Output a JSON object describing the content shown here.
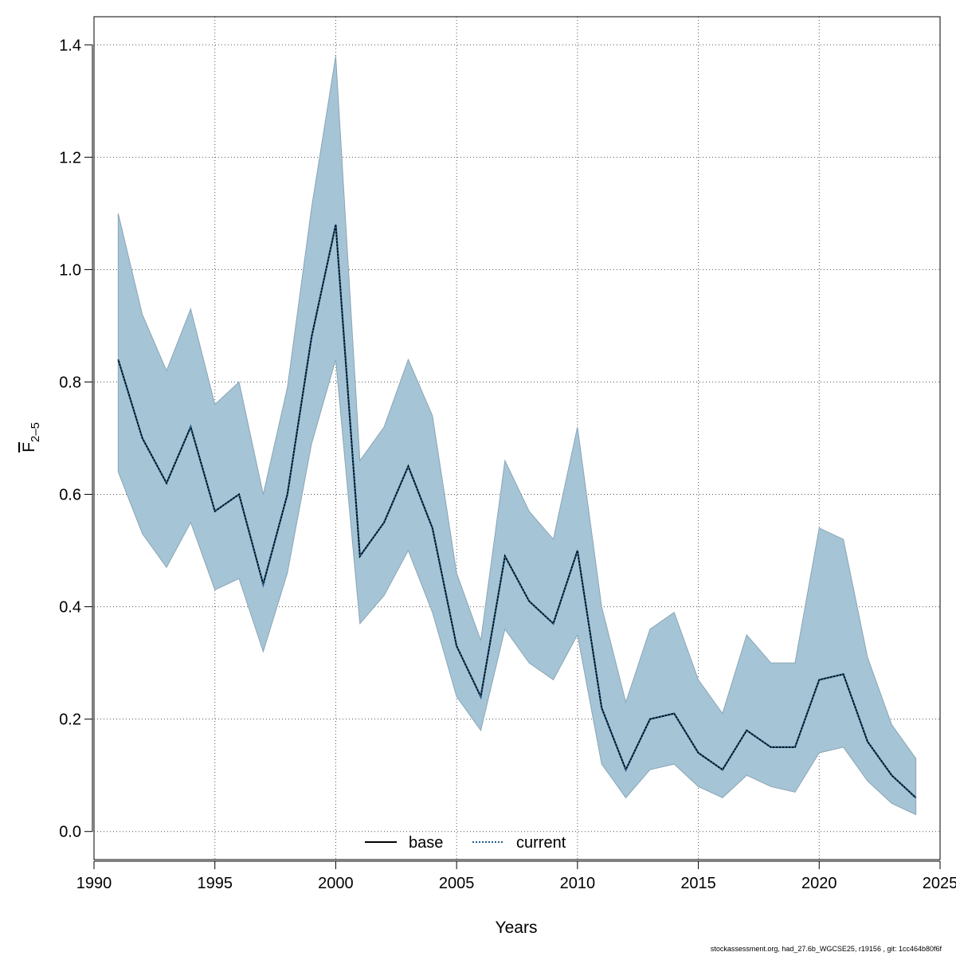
{
  "chart_data": {
    "type": "area",
    "xlabel": "Years",
    "ylabel_main": "F",
    "ylabel_sub": "2–5",
    "xlim": [
      1990,
      2025
    ],
    "ylim": [
      -0.05,
      1.45
    ],
    "x_ticks": [
      1990,
      1995,
      2000,
      2005,
      2010,
      2015,
      2020,
      2025
    ],
    "y_ticks": [
      0.0,
      0.2,
      0.4,
      0.6,
      0.8,
      1.0,
      1.2,
      1.4
    ],
    "y_tick_labels": [
      "0.0",
      "0.2",
      "0.4",
      "0.6",
      "0.8",
      "1.0",
      "1.2",
      "1.4"
    ],
    "grid": true,
    "legend_position": "bottom-center",
    "band_color": "#a5c4d6",
    "band_edge_color": "#8aa6b5",
    "x": [
      1991,
      1992,
      1993,
      1994,
      1995,
      1996,
      1997,
      1998,
      1999,
      2000,
      2001,
      2002,
      2003,
      2004,
      2005,
      2006,
      2007,
      2008,
      2009,
      2010,
      2011,
      2012,
      2013,
      2014,
      2015,
      2016,
      2017,
      2018,
      2019,
      2020,
      2021,
      2022,
      2023,
      2024
    ],
    "series": [
      {
        "name": "base",
        "color": "#000000",
        "dash": "solid",
        "values": [
          0.84,
          0.7,
          0.62,
          0.72,
          0.57,
          0.6,
          0.44,
          0.6,
          0.88,
          1.08,
          0.49,
          0.55,
          0.65,
          0.54,
          0.33,
          0.24,
          0.49,
          0.41,
          0.37,
          0.5,
          0.22,
          0.11,
          0.2,
          0.21,
          0.14,
          0.11,
          0.18,
          0.15,
          0.15,
          0.27,
          0.28,
          0.16,
          0.1,
          0.06
        ]
      },
      {
        "name": "current",
        "color": "#1f5f8b",
        "dash": "dotted",
        "values": [
          0.84,
          0.7,
          0.62,
          0.72,
          0.57,
          0.6,
          0.44,
          0.6,
          0.88,
          1.08,
          0.49,
          0.55,
          0.65,
          0.54,
          0.33,
          0.24,
          0.49,
          0.41,
          0.37,
          0.5,
          0.22,
          0.11,
          0.2,
          0.21,
          0.14,
          0.11,
          0.18,
          0.15,
          0.15,
          0.27,
          0.28,
          0.16,
          0.1,
          0.06
        ]
      }
    ],
    "band_upper": [
      1.1,
      0.92,
      0.82,
      0.93,
      0.76,
      0.8,
      0.6,
      0.79,
      1.11,
      1.38,
      0.66,
      0.72,
      0.84,
      0.74,
      0.46,
      0.34,
      0.66,
      0.57,
      0.52,
      0.72,
      0.4,
      0.23,
      0.36,
      0.39,
      0.27,
      0.21,
      0.35,
      0.3,
      0.3,
      0.54,
      0.52,
      0.31,
      0.19,
      0.13
    ],
    "band_lower": [
      0.64,
      0.53,
      0.47,
      0.55,
      0.43,
      0.45,
      0.32,
      0.46,
      0.69,
      0.84,
      0.37,
      0.42,
      0.5,
      0.39,
      0.24,
      0.18,
      0.36,
      0.3,
      0.27,
      0.35,
      0.12,
      0.06,
      0.11,
      0.12,
      0.08,
      0.06,
      0.1,
      0.08,
      0.07,
      0.14,
      0.15,
      0.09,
      0.05,
      0.03
    ]
  },
  "footer_text": "stockassessment.org, had_27.6b_WGCSE25, r19156 , git: 1cc464b80f6f"
}
